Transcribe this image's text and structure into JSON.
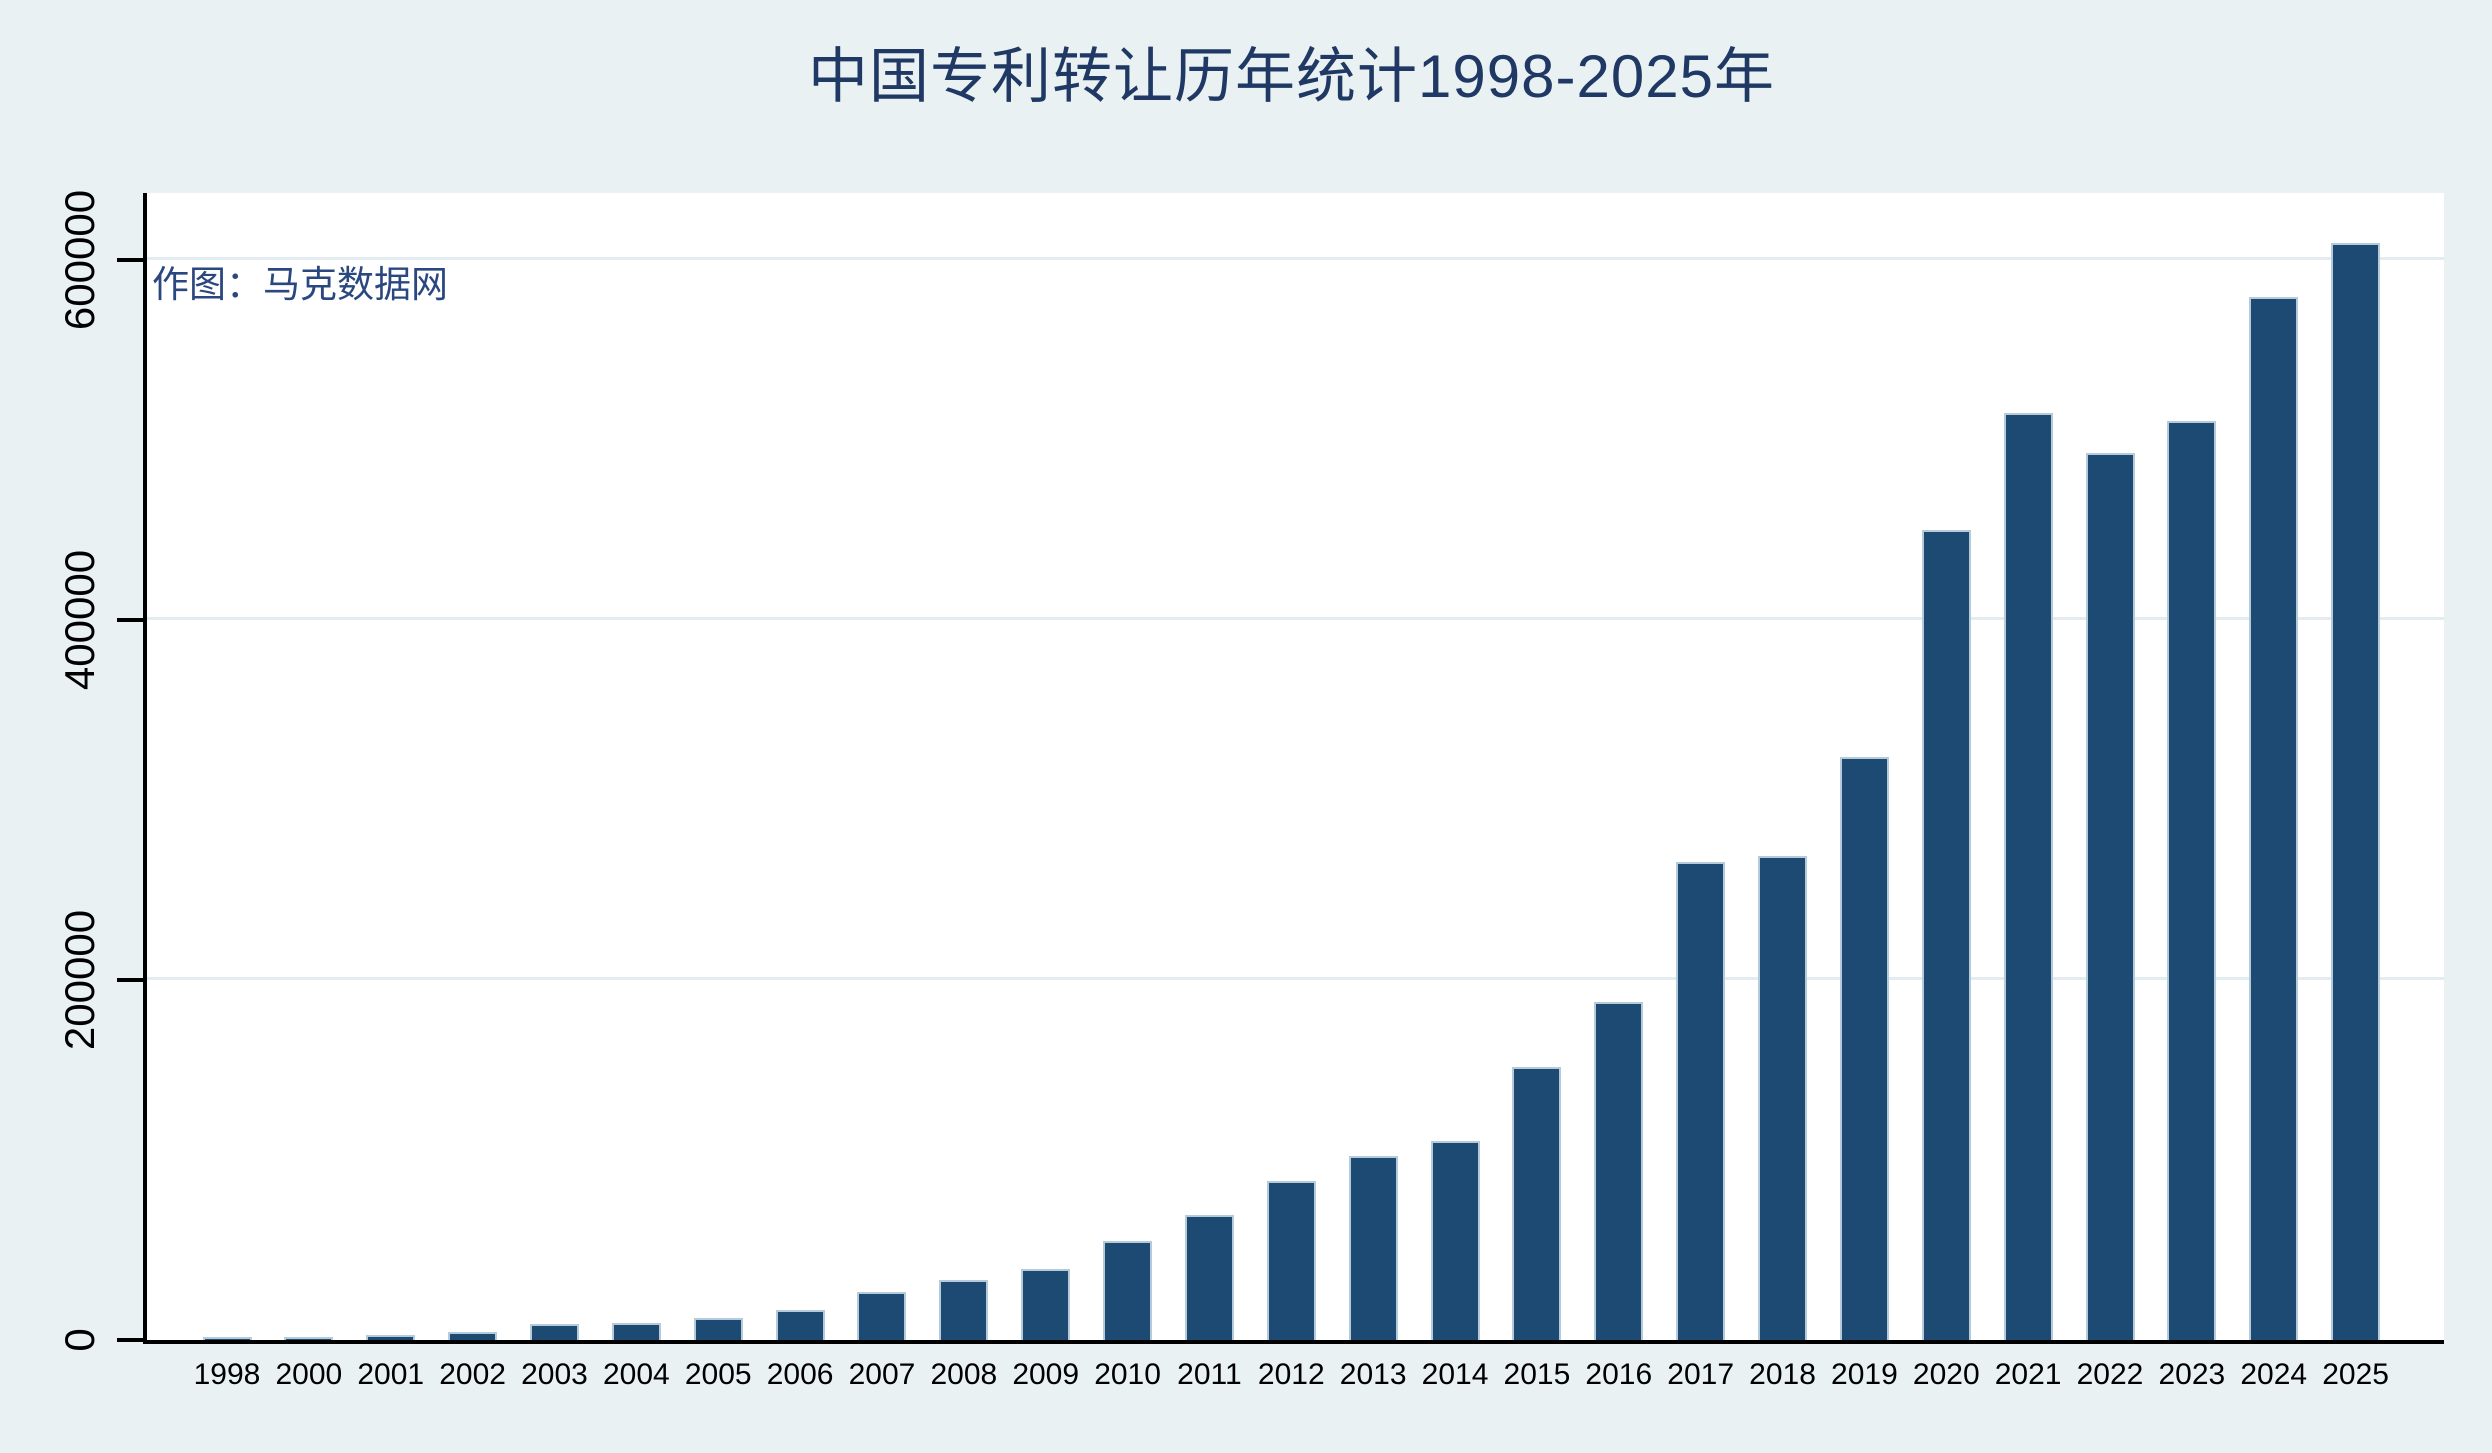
{
  "title": "中国专利转让历年统计1998-2025年",
  "watermark": "作图：马克数据网",
  "colors": {
    "background": "#e9f1f3",
    "plot_background": "#ffffff",
    "bar": "#1d4a73",
    "bar_edge": "#b5cbd9",
    "gridline": "#e3edf1",
    "axis": "#000000",
    "title_text": "#1f3864",
    "watermark_text": "#2a4780",
    "tick_text": "#000000"
  },
  "chart_data": {
    "type": "bar",
    "title": "中国专利转让历年统计1998-2025年",
    "annotation": "作图：马克数据网",
    "categories": [
      "1998",
      "2000",
      "2001",
      "2002",
      "2003",
      "2004",
      "2005",
      "2006",
      "2007",
      "2008",
      "2009",
      "2010",
      "2011",
      "2012",
      "2013",
      "2014",
      "2015",
      "2016",
      "2017",
      "2018",
      "2019",
      "2020",
      "2021",
      "2022",
      "2023",
      "2024",
      "2025"
    ],
    "values": [
      1800,
      1700,
      3000,
      4600,
      8900,
      9600,
      12000,
      16700,
      26900,
      33400,
      39500,
      55000,
      69500,
      88400,
      102300,
      110700,
      151800,
      187600,
      265400,
      268800,
      324000,
      449600,
      515100,
      492400,
      510200,
      579400,
      609300
    ],
    "xlabel": "",
    "ylabel": "",
    "y_ticks": [
      0,
      200000,
      400000,
      600000
    ],
    "y_tick_labels": [
      "0",
      "200000",
      "400000",
      "600000"
    ],
    "ylim": [
      0,
      637000
    ],
    "grid": "horizontal-only",
    "legend": "none"
  }
}
